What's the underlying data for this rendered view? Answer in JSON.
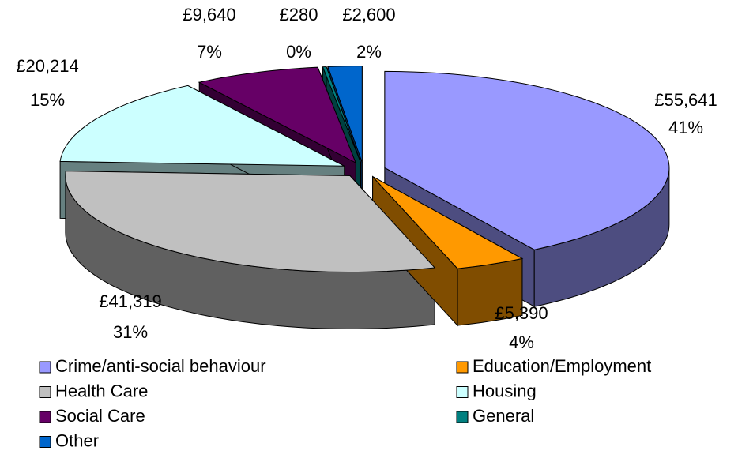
{
  "chart_data": {
    "type": "pie3d",
    "categories": [
      "Crime/anti-social behaviour",
      "Education/Employment",
      "Health Care",
      "Housing",
      "Social Care",
      "General",
      "Other"
    ],
    "values": [
      55641,
      5390,
      41319,
      20214,
      9640,
      280,
      2600
    ],
    "value_labels": [
      "£55,641",
      "£5,390",
      "£41,319",
      "£20,214",
      "£9,640",
      "£280",
      "£2,600"
    ],
    "percents": [
      41,
      4,
      31,
      15,
      7,
      0,
      2
    ],
    "percent_labels": [
      "41%",
      "4%",
      "31%",
      "15%",
      "7%",
      "0%",
      "2%"
    ],
    "colors": [
      "#9999ff",
      "#ff9900",
      "#c0c0c0",
      "#ccffff",
      "#660066",
      "#008080",
      "#0066cc"
    ],
    "legend": "bottom"
  }
}
